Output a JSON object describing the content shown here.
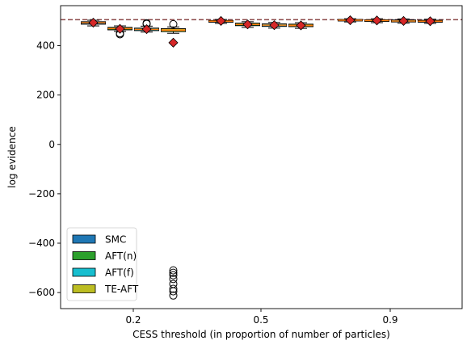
{
  "chart_data": {
    "type": "box",
    "xlabel": "CESS threshold (in proportion of number of particles)",
    "ylabel": "log evidence",
    "ylim": [
      -665,
      562
    ],
    "yticks": [
      -600,
      -400,
      -200,
      0,
      200,
      400
    ],
    "grid": false,
    "legend_position": "lower-left",
    "reference_line": {
      "y": 505,
      "style": "dashed",
      "color": "#8b4a4a"
    },
    "categories": [
      "0.2",
      "0.5",
      "0.9"
    ],
    "series": [
      {
        "name": "SMC",
        "color": "#1f77b4",
        "boxes": [
          {
            "q1": 487,
            "median": 493,
            "q3": 497,
            "whisker_low": 480,
            "whisker_high": 503,
            "mean": 493,
            "outliers": []
          },
          {
            "q1": 495,
            "median": 499,
            "q3": 502,
            "whisker_low": 490,
            "whisker_high": 506,
            "mean": 500,
            "outliers": []
          },
          {
            "q1": 500,
            "median": 503,
            "q3": 506,
            "whisker_low": 496,
            "whisker_high": 509,
            "mean": 503,
            "outliers": []
          }
        ]
      },
      {
        "name": "AFT(n)",
        "color": "#2ca02c",
        "boxes": [
          {
            "q1": 464,
            "median": 469,
            "q3": 474,
            "whisker_low": 458,
            "whisker_high": 480,
            "mean": 468,
            "outliers": [
              450,
              446
            ]
          },
          {
            "q1": 481,
            "median": 486,
            "q3": 491,
            "whisker_low": 474,
            "whisker_high": 497,
            "mean": 486,
            "outliers": []
          },
          {
            "q1": 498,
            "median": 502,
            "q3": 505,
            "whisker_low": 493,
            "whisker_high": 509,
            "mean": 502,
            "outliers": []
          }
        ]
      },
      {
        "name": "AFT(f)",
        "color": "#17becf",
        "boxes": [
          {
            "q1": 461,
            "median": 466,
            "q3": 471,
            "whisker_low": 455,
            "whisker_high": 479,
            "mean": 467,
            "outliers": [
              488,
              491
            ]
          },
          {
            "q1": 478,
            "median": 483,
            "q3": 488,
            "whisker_low": 471,
            "whisker_high": 494,
            "mean": 483,
            "outliers": []
          },
          {
            "q1": 496,
            "median": 500,
            "q3": 504,
            "whisker_low": 491,
            "whisker_high": 508,
            "mean": 500,
            "outliers": []
          }
        ]
      },
      {
        "name": "TE-AFT",
        "color": "#bcbd22",
        "boxes": [
          {
            "q1": 457,
            "median": 463,
            "q3": 469,
            "whisker_low": 450,
            "whisker_high": 476,
            "mean": 412,
            "outliers": [
              487,
              -510,
              -520,
              -530,
              -545,
              -565,
              -585,
              -595,
              -612
            ]
          },
          {
            "q1": 477,
            "median": 482,
            "q3": 487,
            "whisker_low": 470,
            "whisker_high": 493,
            "mean": 482,
            "outliers": []
          },
          {
            "q1": 495,
            "median": 499,
            "q3": 503,
            "whisker_low": 490,
            "whisker_high": 507,
            "mean": 499,
            "outliers": []
          }
        ]
      }
    ]
  }
}
